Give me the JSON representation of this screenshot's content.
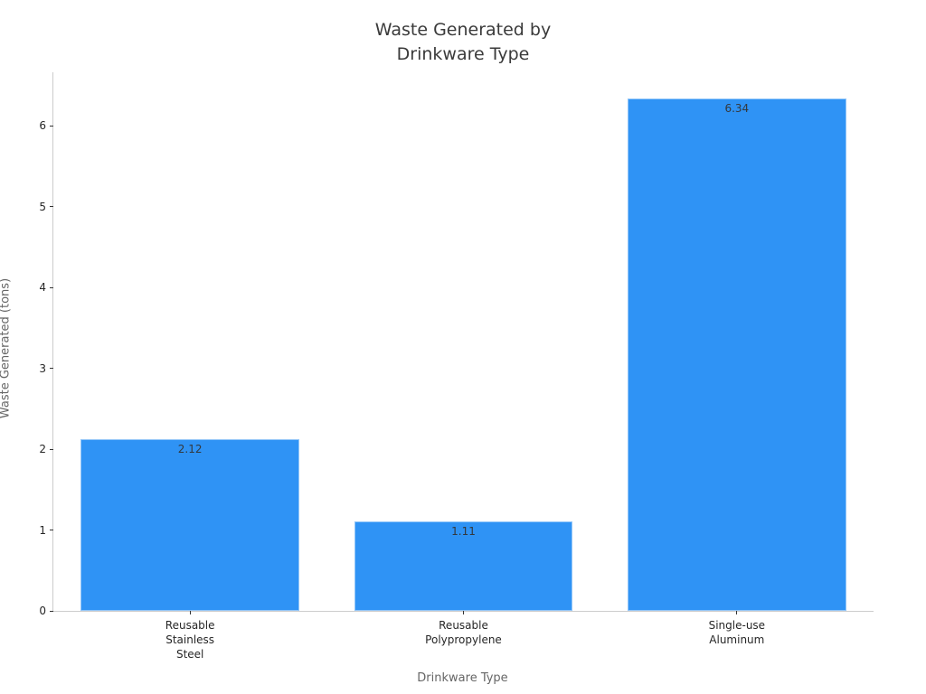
{
  "chart_data": {
    "type": "bar",
    "title": "Waste Generated by\nDrinkware Type",
    "xlabel": "Drinkware Type",
    "ylabel": "Waste Generated (tons)",
    "categories": [
      "Reusable\nStainless\nSteel",
      "Reusable\nPolypropylene",
      "Single-use\nAluminum"
    ],
    "values": [
      2.12,
      1.11,
      6.34
    ],
    "value_labels": [
      "2.12",
      "1.11",
      "6.34"
    ],
    "yticks": [
      0,
      1,
      2,
      3,
      4,
      5,
      6
    ],
    "ylim": [
      0,
      6.66
    ],
    "grid": false,
    "legend": "none",
    "colors": {
      "bar_fill": "#2f93f5",
      "bar_edge": "#93c6f8",
      "spine": "#cccccc",
      "tick_label": "#262626",
      "value_label": "#33383d",
      "axis_title": "#666666",
      "title": "#3a3a3a"
    }
  }
}
